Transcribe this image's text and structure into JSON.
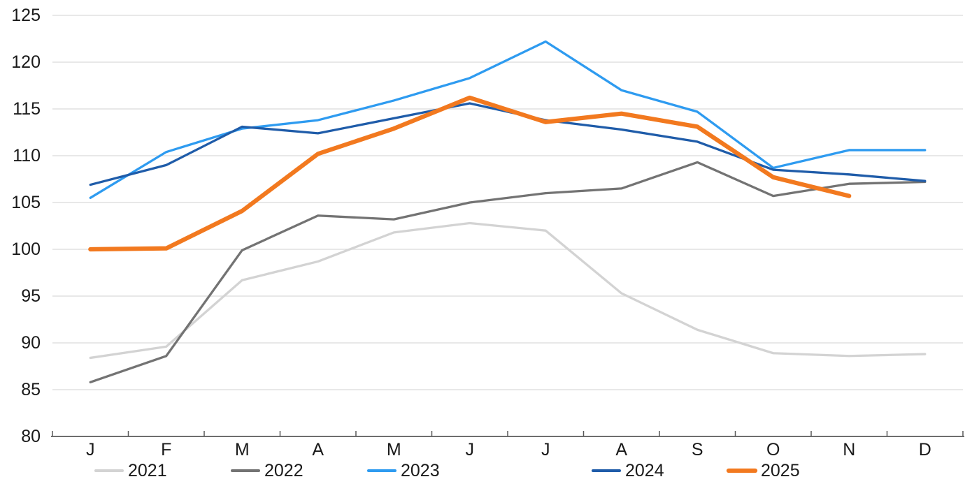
{
  "chart_data": {
    "type": "line",
    "title": "",
    "xlabel": "",
    "ylabel": "",
    "categories": [
      "J",
      "F",
      "M",
      "A",
      "M",
      "J",
      "J",
      "A",
      "S",
      "O",
      "N",
      "D"
    ],
    "y_axis": {
      "min": 80,
      "max": 125,
      "tick_step": 5,
      "tick_labels": [
        "80",
        "85",
        "90",
        "95",
        "100",
        "105",
        "110",
        "115",
        "120",
        "125"
      ]
    },
    "grid": true,
    "legend_position": "bottom",
    "colors": {
      "gridline": "#d9d9d9",
      "axis": "#595959",
      "text": "#1a1a1a"
    },
    "series": [
      {
        "name": "2021",
        "color": "#d3d3d3",
        "stroke_width": 3.3,
        "values": [
          88.4,
          89.6,
          96.7,
          98.7,
          101.8,
          102.8,
          102.0,
          95.3,
          91.4,
          88.9,
          88.6,
          88.8
        ]
      },
      {
        "name": "2022",
        "color": "#737373",
        "stroke_width": 3.3,
        "values": [
          85.8,
          88.6,
          99.9,
          103.6,
          103.2,
          105.0,
          106.0,
          106.5,
          109.3,
          105.7,
          107.0,
          107.2
        ]
      },
      {
        "name": "2023",
        "color": "#2e9bf0",
        "stroke_width": 3.3,
        "values": [
          105.5,
          110.4,
          112.9,
          113.8,
          115.9,
          118.3,
          122.2,
          117.0,
          114.7,
          108.7,
          110.6,
          110.6
        ]
      },
      {
        "name": "2024",
        "color": "#1f5ca9",
        "stroke_width": 3.3,
        "values": [
          106.9,
          109.0,
          113.1,
          112.4,
          114.0,
          115.6,
          113.8,
          112.8,
          111.5,
          108.5,
          108.0,
          107.3
        ]
      },
      {
        "name": "2025",
        "color": "#f2791f",
        "stroke_width": 6.2,
        "values": [
          100.0,
          100.1,
          104.1,
          110.2,
          112.9,
          116.2,
          113.6,
          114.5,
          113.1,
          107.7,
          105.7
        ]
      }
    ]
  }
}
